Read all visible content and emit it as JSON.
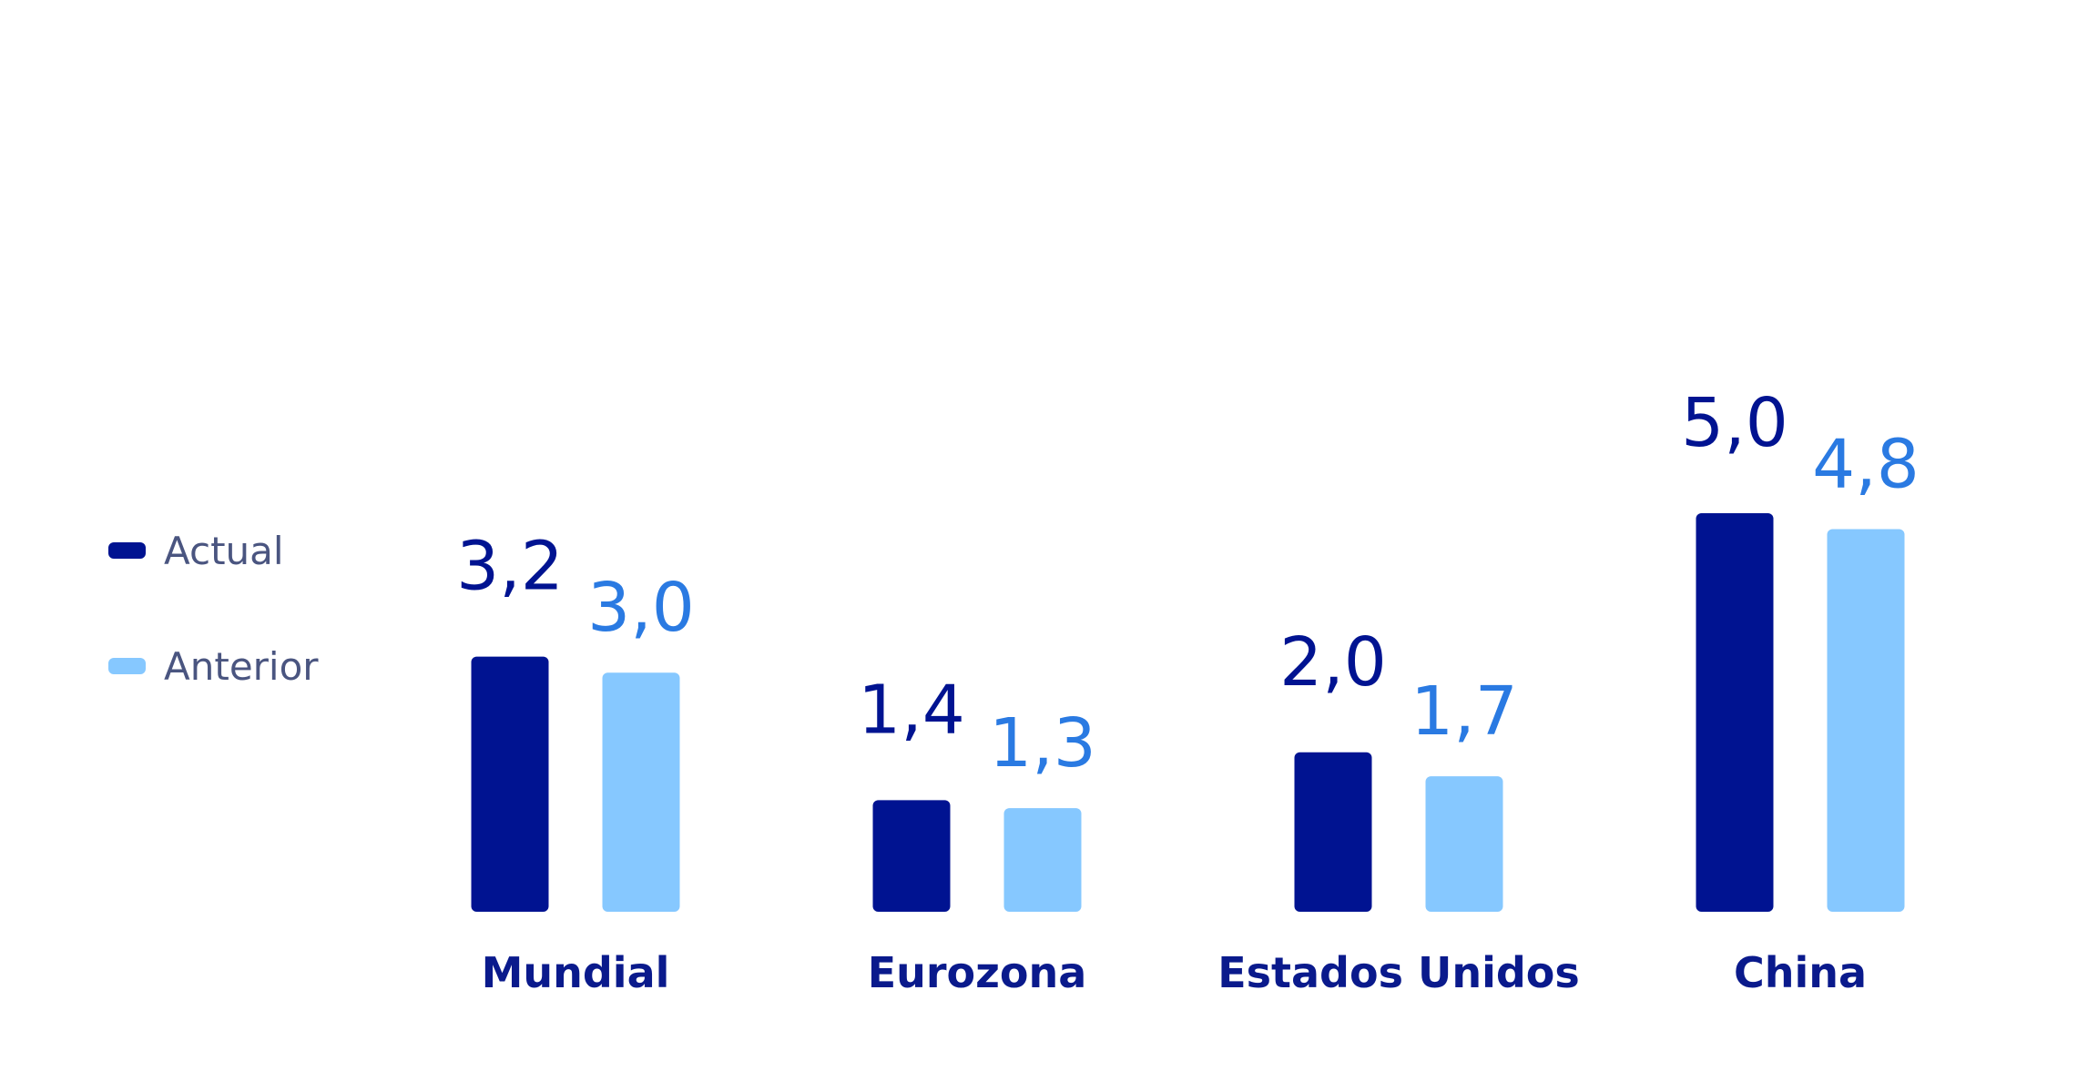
{
  "chart_data": {
    "type": "bar",
    "categories": [
      "Mundial",
      "Eurozona",
      "Estados Unidos",
      "China"
    ],
    "series": [
      {
        "name": "Actual",
        "color": "#001391",
        "label_color": "#001391",
        "values": [
          3.2,
          1.4,
          2.0,
          5.0
        ],
        "value_labels": [
          "3,2",
          "1,4",
          "2,0",
          "5,0"
        ]
      },
      {
        "name": "Anterior",
        "color": "#86c8ff",
        "label_color": "#2a7ae2",
        "values": [
          3.0,
          1.3,
          1.7,
          4.8
        ],
        "value_labels": [
          "3,0",
          "1,3",
          "1,7",
          "4,8"
        ]
      }
    ],
    "legend": "left"
  }
}
